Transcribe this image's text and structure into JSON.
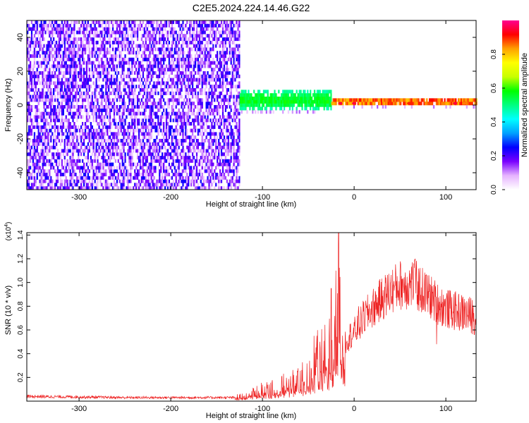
{
  "title": "C2E5.2024.224.14.46.G22",
  "chart_data": [
    {
      "type": "heatmap",
      "title": "C2E5.2024.224.14.46.G22",
      "xlabel": "Height of straight line (km)",
      "ylabel": "Frequency (Hz)",
      "xlim": [
        -357,
        133
      ],
      "ylim": [
        -50,
        50
      ],
      "x_ticks": [
        -300,
        -200,
        -100,
        0,
        100
      ],
      "y_ticks": [
        -40,
        -20,
        0,
        20,
        40
      ],
      "colorbar": {
        "label": "Normalized spectral amplitude",
        "range": [
          0,
          1
        ],
        "ticks": [
          "0.0",
          "0.2",
          "0.4",
          "0.6",
          "0.8"
        ],
        "colors": [
          "#ffffff",
          "#e6b3ff",
          "#7a00ff",
          "#0000ff",
          "#00a0ff",
          "#00ffff",
          "#00ff80",
          "#00ff00",
          "#c8ff00",
          "#ffff00",
          "#ffa000",
          "#ff0000",
          "#ff0090"
        ]
      },
      "regions": [
        {
          "x": [
            -357,
            -125
          ],
          "frequency_spread": [
            -50,
            50
          ],
          "typical_amplitude": [
            0.05,
            0.25
          ],
          "description": "broadband noise"
        },
        {
          "x": [
            -125,
            -25
          ],
          "frequency_center": 2,
          "frequency_spread": [
            -5,
            8
          ],
          "typical_amplitude": [
            0.3,
            0.6
          ]
        },
        {
          "x": [
            -25,
            133
          ],
          "frequency_center": 1,
          "frequency_spread": [
            -2,
            3
          ],
          "typical_amplitude": [
            0.45,
            0.95
          ]
        }
      ],
      "peaks": [
        {
          "x": -15,
          "frequency": 1,
          "amplitude": 0.95
        },
        {
          "x": 0,
          "frequency": 1,
          "amplitude": 0.95
        },
        {
          "x": 60,
          "frequency": 1,
          "amplitude": 0.9
        },
        {
          "x": 110,
          "frequency": 1,
          "amplitude": 0.95
        },
        {
          "x": 120,
          "frequency": 1,
          "amplitude": 0.85
        }
      ]
    },
    {
      "type": "line",
      "xlabel": "Height of straight line (km)",
      "ylabel": "SNR (10 * v/v)",
      "y_multiplier_label": "(x10",
      "y_multiplier_exponent": "4",
      "xlim": [
        -357,
        133
      ],
      "ylim": [
        0,
        1.42
      ],
      "x_ticks": [
        -300,
        -200,
        -100,
        0,
        100
      ],
      "y_ticks": [
        0.2,
        0.4,
        0.6,
        0.8,
        1.0,
        1.2,
        1.4
      ],
      "series": [
        {
          "color": "#ee2222",
          "x": [
            -357,
            -300,
            -250,
            -200,
            -150,
            -130,
            -115,
            -100,
            -90,
            -80,
            -70,
            -60,
            -50,
            -45,
            -40,
            -35,
            -30,
            -25,
            -20,
            -17,
            -15,
            -13,
            -10,
            -5,
            0,
            5,
            10,
            20,
            30,
            40,
            50,
            60,
            65,
            70,
            80,
            90,
            100,
            110,
            120,
            133
          ],
          "y": [
            0.04,
            0.035,
            0.03,
            0.03,
            0.03,
            0.03,
            0.05,
            0.09,
            0.1,
            0.12,
            0.15,
            0.17,
            0.22,
            0.3,
            0.35,
            0.38,
            0.45,
            0.4,
            0.5,
            0.7,
            0.75,
            0.6,
            0.5,
            0.55,
            0.58,
            0.62,
            0.7,
            0.78,
            0.86,
            0.93,
            0.98,
            0.98,
            1.0,
            0.95,
            0.9,
            0.83,
            0.78,
            0.76,
            0.74,
            0.71
          ],
          "spikes": [
            {
              "x": -17,
              "y": 1.42
            },
            {
              "x": -20,
              "y": 1.1
            },
            {
              "x": -25,
              "y": 0.95
            },
            {
              "x": 5,
              "y": 0.8
            },
            {
              "x": 50,
              "y": 1.1
            },
            {
              "x": 66,
              "y": 1.19
            },
            {
              "x": 90,
              "y": 0.48
            }
          ]
        }
      ]
    }
  ]
}
